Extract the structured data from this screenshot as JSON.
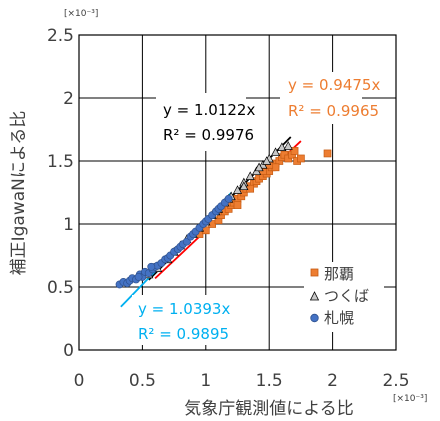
{
  "chart_data": {
    "type": "scatter",
    "xlabel": "気象庁観測値による比",
    "ylabel": "補正IgawaNによる比",
    "x_multiplier": "[×10⁻³]",
    "y_multiplier": "[×10⁻³]",
    "xlim": [
      0,
      2.5
    ],
    "ylim": [
      0,
      2.5
    ],
    "x_ticks": [
      "0",
      "0.5",
      "1",
      "1.5",
      "2",
      "2.5"
    ],
    "y_ticks": [
      "0",
      "0.5",
      "1",
      "1.5",
      "2",
      "2.5"
    ],
    "grid": true,
    "legend_position": "bottom-right",
    "series": [
      {
        "name": "那覇",
        "marker": "square",
        "color": "#ED7D31",
        "trendline": {
          "slope": 0.9475,
          "x_range": [
            0.6,
            1.75
          ],
          "color": "#FF0000"
        },
        "equation": "y = 0.9475x",
        "r2": "R² = 0.9965",
        "points": [
          [
            0.95,
            0.92
          ],
          [
            1.0,
            0.95
          ],
          [
            1.05,
            1.0
          ],
          [
            1.1,
            1.03
          ],
          [
            1.12,
            1.07
          ],
          [
            1.15,
            1.1
          ],
          [
            1.18,
            1.12
          ],
          [
            1.2,
            1.15
          ],
          [
            1.22,
            1.17
          ],
          [
            1.25,
            1.2
          ],
          [
            1.28,
            1.22
          ],
          [
            1.3,
            1.25
          ],
          [
            1.32,
            1.28
          ],
          [
            1.35,
            1.3
          ],
          [
            1.38,
            1.32
          ],
          [
            1.4,
            1.34
          ],
          [
            1.42,
            1.36
          ],
          [
            1.45,
            1.38
          ],
          [
            1.48,
            1.4
          ],
          [
            1.5,
            1.42
          ],
          [
            1.52,
            1.45
          ],
          [
            1.55,
            1.48
          ],
          [
            1.58,
            1.5
          ],
          [
            1.6,
            1.53
          ],
          [
            1.62,
            1.55
          ],
          [
            1.65,
            1.52
          ],
          [
            1.68,
            1.55
          ],
          [
            1.7,
            1.58
          ],
          [
            1.72,
            1.5
          ],
          [
            1.75,
            1.52
          ],
          [
            1.55,
            1.45
          ],
          [
            1.5,
            1.47
          ],
          [
            1.45,
            1.42
          ],
          [
            1.35,
            1.28
          ],
          [
            1.25,
            1.15
          ],
          [
            1.96,
            1.56
          ]
        ]
      },
      {
        "name": "つくば",
        "marker": "triangle",
        "color": "#C8C8C8",
        "trendline": {
          "slope": 1.0122,
          "x_range": [
            0.55,
            1.67
          ],
          "color": "#000000"
        },
        "equation": "y = 1.0122x",
        "r2": "R² = 0.9976",
        "points": [
          [
            0.55,
            0.6
          ],
          [
            0.62,
            0.65
          ],
          [
            0.7,
            0.72
          ],
          [
            0.75,
            0.78
          ],
          [
            0.8,
            0.83
          ],
          [
            0.85,
            0.88
          ],
          [
            0.9,
            0.92
          ],
          [
            0.95,
            0.97
          ],
          [
            1.0,
            1.02
          ],
          [
            1.05,
            1.07
          ],
          [
            1.1,
            1.12
          ],
          [
            1.15,
            1.17
          ],
          [
            1.2,
            1.22
          ],
          [
            1.25,
            1.27
          ],
          [
            1.3,
            1.33
          ],
          [
            1.35,
            1.38
          ],
          [
            1.4,
            1.42
          ],
          [
            1.45,
            1.47
          ],
          [
            1.5,
            1.52
          ],
          [
            1.55,
            1.57
          ],
          [
            1.6,
            1.61
          ],
          [
            1.65,
            1.62
          ],
          [
            1.42,
            1.45
          ],
          [
            1.48,
            1.5
          ],
          [
            1.3,
            1.3
          ],
          [
            1.18,
            1.2
          ],
          [
            1.08,
            1.1
          ]
        ]
      },
      {
        "name": "札幌",
        "marker": "circle",
        "color": "#4472C4",
        "trendline": {
          "slope": 1.0393,
          "x_range": [
            0.33,
            1.2
          ],
          "color": "#00B0F0"
        },
        "equation": "y = 1.0393x",
        "r2": "R² = 0.9895",
        "points": [
          [
            0.32,
            0.52
          ],
          [
            0.35,
            0.54
          ],
          [
            0.38,
            0.53
          ],
          [
            0.4,
            0.55
          ],
          [
            0.42,
            0.57
          ],
          [
            0.45,
            0.56
          ],
          [
            0.48,
            0.6
          ],
          [
            0.5,
            0.58
          ],
          [
            0.52,
            0.62
          ],
          [
            0.55,
            0.61
          ],
          [
            0.58,
            0.64
          ],
          [
            0.6,
            0.66
          ],
          [
            0.62,
            0.67
          ],
          [
            0.65,
            0.69
          ],
          [
            0.68,
            0.72
          ],
          [
            0.7,
            0.73
          ],
          [
            0.72,
            0.75
          ],
          [
            0.75,
            0.78
          ],
          [
            0.78,
            0.8
          ],
          [
            0.8,
            0.82
          ],
          [
            0.82,
            0.84
          ],
          [
            0.85,
            0.86
          ],
          [
            0.88,
            0.9
          ],
          [
            0.9,
            0.92
          ],
          [
            0.92,
            0.94
          ],
          [
            0.95,
            0.97
          ],
          [
            0.98,
            1.0
          ],
          [
            1.0,
            1.02
          ],
          [
            1.02,
            1.04
          ],
          [
            1.05,
            1.07
          ],
          [
            1.08,
            1.1
          ],
          [
            1.1,
            1.12
          ],
          [
            1.12,
            1.14
          ],
          [
            1.15,
            1.17
          ],
          [
            1.18,
            1.2
          ],
          [
            0.47,
            0.58
          ],
          [
            0.57,
            0.66
          ]
        ]
      }
    ]
  }
}
